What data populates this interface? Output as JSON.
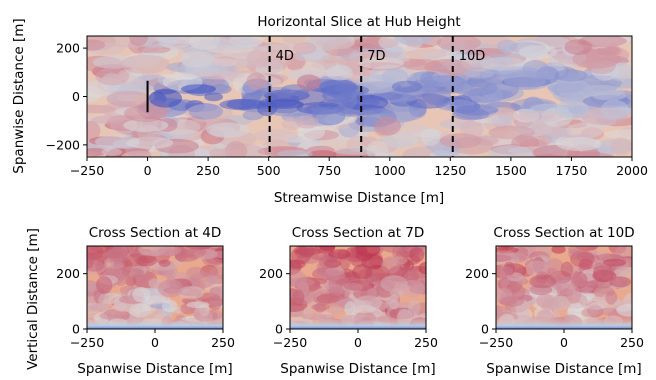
{
  "chart_data": [
    {
      "type": "heatmap",
      "title": "Horizontal Slice at Hub Height",
      "xlabel": "Streamwise Distance [m]",
      "ylabel": "Spanwise Distance [m]",
      "xlim": [
        -250,
        2000
      ],
      "ylim": [
        -250,
        250
      ],
      "xticks": [
        -250,
        0,
        250,
        500,
        750,
        1000,
        1250,
        1500,
        1750,
        2000
      ],
      "yticks": [
        -200,
        0,
        200
      ],
      "colormap": [
        "#3b4cc0",
        "#dddddd",
        "#b40426"
      ],
      "turbine": {
        "x": 0,
        "y_range": [
          -65,
          65
        ]
      },
      "wake_center": [
        [
          0,
          0
        ],
        [
          150,
          -5
        ],
        [
          300,
          -10
        ],
        [
          450,
          -20
        ],
        [
          550,
          -30
        ],
        [
          650,
          -25
        ],
        [
          750,
          -10
        ],
        [
          800,
          0
        ],
        [
          870,
          -45
        ],
        [
          950,
          -30
        ],
        [
          1100,
          -15
        ],
        [
          1250,
          -5
        ],
        [
          1400,
          20
        ],
        [
          1600,
          30
        ],
        [
          1800,
          20
        ],
        [
          2000,
          10
        ]
      ],
      "markers": [
        {
          "x": 504,
          "label": "4D"
        },
        {
          "x": 882,
          "label": "7D"
        },
        {
          "x": 1260,
          "label": "10D"
        }
      ]
    },
    {
      "type": "heatmap",
      "title": "Cross Section at 4D",
      "xlabel": "Spanwise Distance [m]",
      "ylabel": "Vertical Distance [m]",
      "xlim": [
        -250,
        250
      ],
      "ylim": [
        0,
        300
      ],
      "xticks": [
        -250,
        0,
        250
      ],
      "yticks": [
        0,
        200
      ]
    },
    {
      "type": "heatmap",
      "title": "Cross Section at 7D",
      "xlabel": "Spanwise Distance [m]",
      "ylabel": "",
      "xlim": [
        -250,
        250
      ],
      "ylim": [
        0,
        300
      ],
      "xticks": [
        -250,
        0,
        250
      ],
      "yticks": [
        0,
        200
      ]
    },
    {
      "type": "heatmap",
      "title": "Cross Section at 10D",
      "xlabel": "Spanwise Distance [m]",
      "ylabel": "",
      "xlim": [
        -250,
        250
      ],
      "ylim": [
        0,
        300
      ],
      "xticks": [
        -250,
        0,
        250
      ],
      "yticks": [
        0,
        200
      ]
    }
  ]
}
